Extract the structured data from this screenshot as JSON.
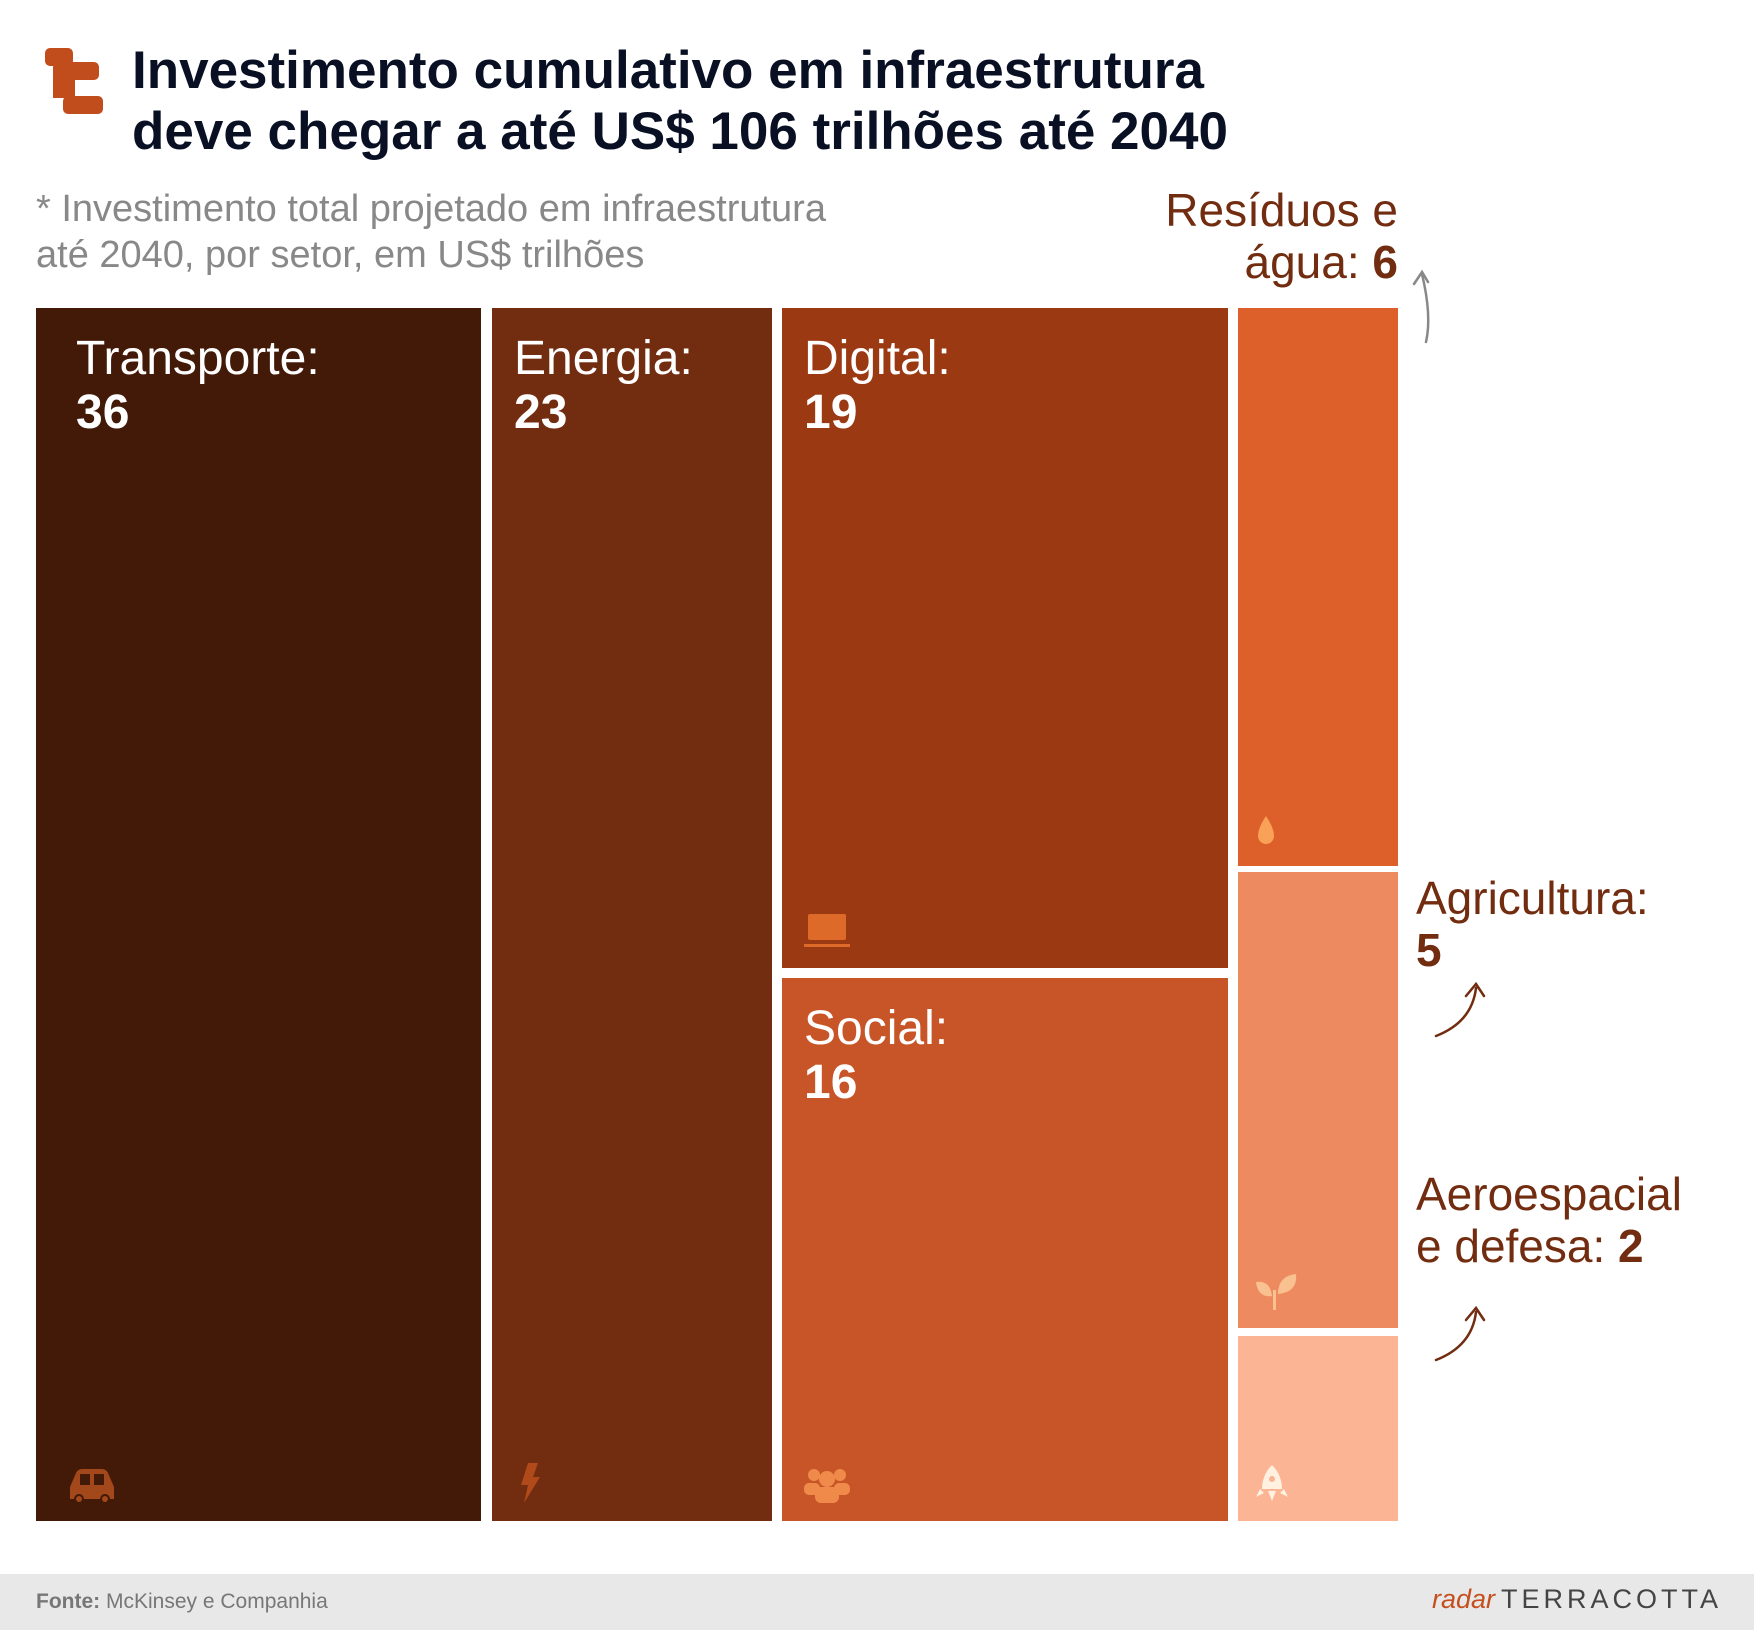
{
  "header": {
    "title_line1": "Investimento cumulativo em infraestrutura",
    "title_line2": "deve chegar a até US$ 106 trilhões até 2040",
    "subtitle_line1": "* Investimento total projetado em infraestrutura",
    "subtitle_line2": "até 2040, por setor, em US$ trilhões"
  },
  "chart_data": {
    "type": "treemap",
    "title": "Investimento cumulativo em infraestrutura deve chegar a até US$ 106 trilhões até 2040",
    "unit": "US$ trilhões",
    "total": 106,
    "items": [
      {
        "label": "Transporte:",
        "value": 36,
        "color": "#421a07",
        "icon": "car-icon"
      },
      {
        "label": "Energia:",
        "value": 23,
        "color": "#722c10",
        "icon": "lightning-icon"
      },
      {
        "label": "Digital:",
        "value": 19,
        "color": "#9b3a12",
        "icon": "laptop-icon"
      },
      {
        "label": "Social:",
        "value": 16,
        "color": "#c85527",
        "icon": "people-icon"
      },
      {
        "label_line1": "Resíduos e",
        "label_line2": "água:",
        "value": 6,
        "color": "#dd5f2a",
        "icon": "water-drop-icon"
      },
      {
        "label": "Agricultura:",
        "value": 5,
        "color": "#ee8a60",
        "icon": "plant-icon"
      },
      {
        "label_line1": "Aeroespacial",
        "label_line2": "e defesa:",
        "value": 2,
        "color": "#fbb494",
        "icon": "rocket-icon"
      }
    ]
  },
  "footer": {
    "source_label": "Fonte:",
    "source": "McKinsey e Companhia",
    "brand_radar": "radar",
    "brand_name": "TERRACOTTA"
  }
}
